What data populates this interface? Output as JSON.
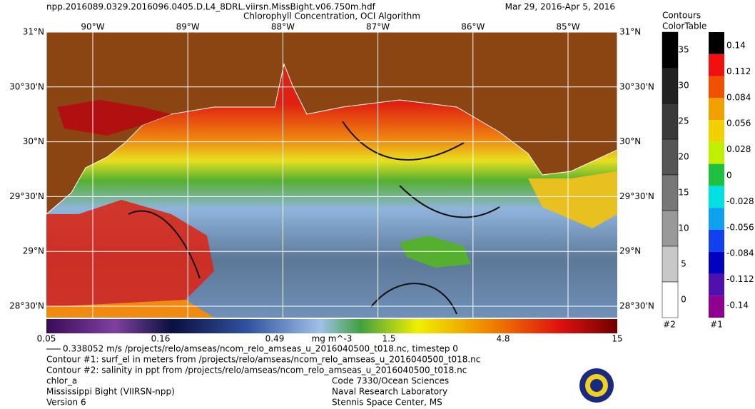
{
  "header": {
    "filename": "npp.2016089.0329.2016096.0405.D.L4_8DRL.viirsn.MissBight.v06.750m.hdf",
    "title": "Chlorophyll Concentration, OCI Algorithm",
    "date": "Mar 29, 2016-Apr  5, 2016"
  },
  "map": {
    "lon_labels": [
      "90°W",
      "89°W",
      "88°W",
      "87°W",
      "86°W",
      "85°W"
    ],
    "lat_labels": [
      "31°N",
      "30°30'N",
      "30°N",
      "29°30'N",
      "29°N",
      "28°30'N"
    ]
  },
  "colorbar": {
    "labels": [
      "0.05",
      "0.16",
      "0.49",
      "1.5",
      "4.8",
      "15"
    ],
    "unit": "mg m^-3"
  },
  "contour_scale": {
    "title": "Contours",
    "labels": [
      "35",
      "30",
      "25",
      "20",
      "15",
      "10",
      "5",
      "0"
    ],
    "footer": "#2"
  },
  "color_table": {
    "title": "ColorTable",
    "labels": [
      "0.14",
      "0.112",
      "0.084",
      "0.056",
      "0.028",
      "0",
      "-0.028",
      "-0.056",
      "-0.084",
      "-0.112",
      "-0.14"
    ],
    "footer": "#1"
  },
  "notes": [
    "0.338052 m/s /projects/relo/amseas/ncom_relo_amseas_u_2016040500_t018.nc, timestep 0",
    "Contour #1: surf_el in meters from /projects/relo/amseas/ncom_relo_amseas_u_2016040500_t018.nc",
    "Contour #2: salinity in ppt from /projects/relo/amseas/ncom_relo_amseas_u_2016040500_t018.nc",
    "chlor_a",
    "Mississippi Bight (VIIRSN-npp)",
    "Version 6"
  ],
  "credits": [
    "Code 7330/Ocean Sciences",
    "Naval Research Laboratory",
    "Stennis Space Center, MS"
  ]
}
